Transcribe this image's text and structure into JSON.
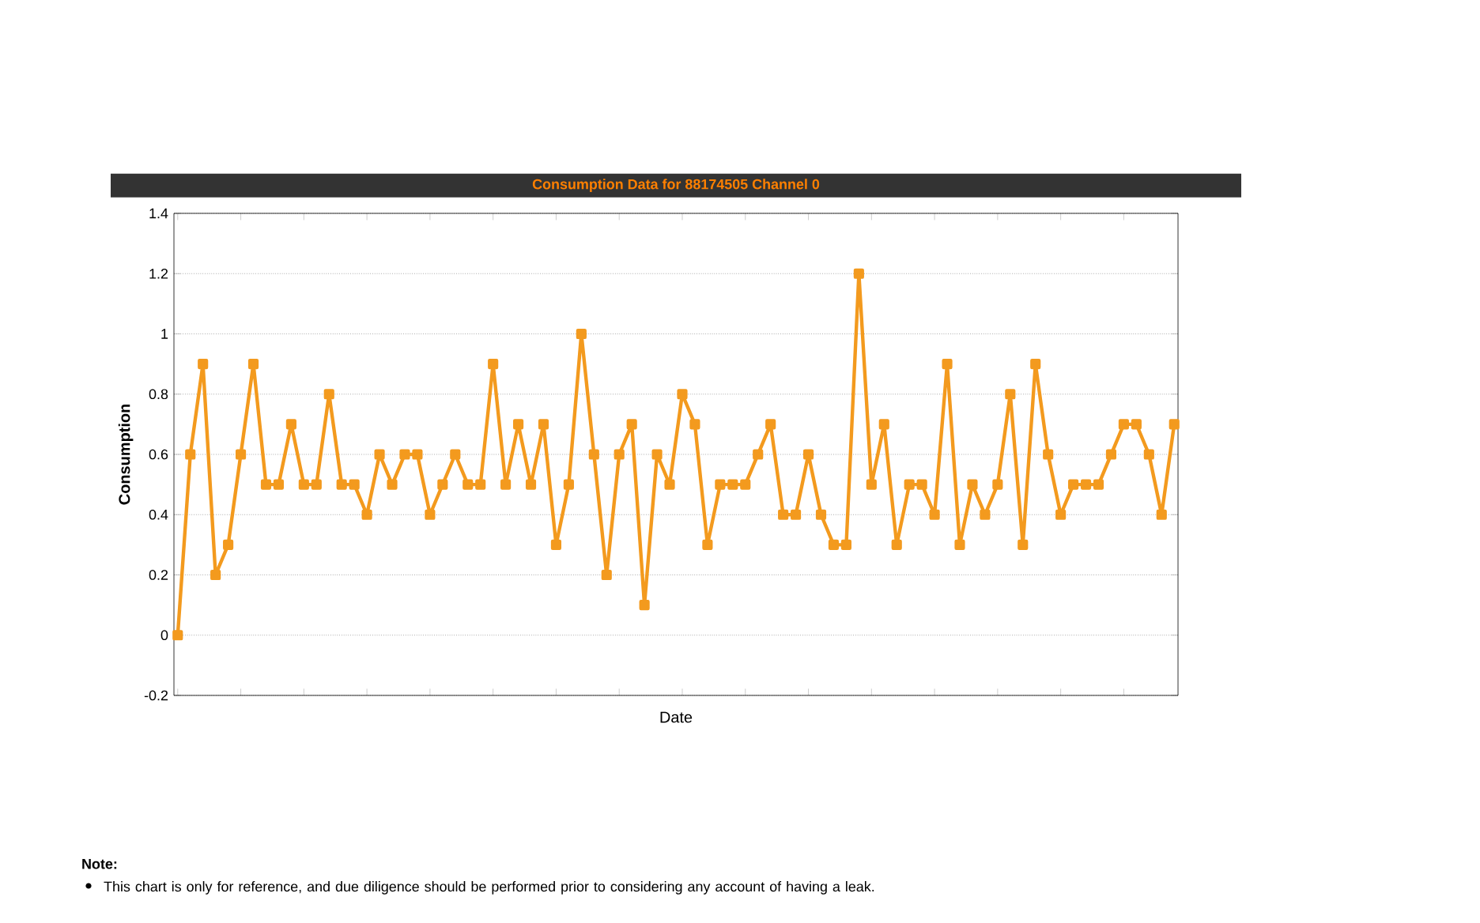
{
  "chart_data": {
    "type": "line",
    "title": "Consumption Data for 88174505 Channel 0",
    "xlabel": "Date",
    "ylabel": "Consumption",
    "categories": [
      null,
      null,
      null,
      null,
      null,
      null,
      null,
      null,
      null,
      null,
      null,
      null,
      null,
      null,
      null,
      null,
      null,
      null,
      null,
      null,
      null,
      null,
      null,
      null,
      null,
      null,
      null,
      null,
      null,
      null,
      null,
      null,
      null,
      null,
      null,
      null,
      null,
      null,
      null,
      null,
      null,
      null,
      null,
      null,
      null,
      null,
      null,
      null,
      null,
      null,
      null,
      null,
      null,
      null,
      null,
      null,
      null,
      null,
      null,
      null,
      null,
      null,
      null,
      null,
      null,
      null,
      null,
      null,
      null,
      null,
      null,
      null,
      null,
      null,
      null,
      null,
      null,
      null,
      null,
      null
    ],
    "series": [
      {
        "color": "#f39a1e",
        "values": [
          0,
          0.6,
          0.9,
          0.2,
          0.3,
          0.6,
          0.9,
          0.5,
          0.5,
          0.7,
          0.5,
          0.5,
          0.8,
          0.5,
          0.5,
          0.4,
          0.6,
          0.5,
          0.6,
          0.6,
          0.4,
          0.5,
          0.6,
          0.5,
          0.5,
          0.9,
          0.5,
          0.7,
          0.5,
          0.7,
          0.3,
          0.5,
          1.0,
          0.6,
          0.2,
          0.6,
          0.7,
          0.1,
          0.6,
          0.5,
          0.8,
          0.7,
          0.3,
          0.5,
          0.5,
          0.5,
          0.6,
          0.7,
          0.4,
          0.4,
          0.6,
          0.4,
          0.3,
          0.3,
          1.2,
          0.5,
          0.7,
          0.3,
          0.5,
          0.5,
          0.4,
          0.9,
          0.3,
          0.5,
          0.4,
          0.5,
          0.8,
          0.3,
          0.9,
          0.6,
          0.4,
          0.5,
          0.5,
          0.5,
          0.6,
          0.7,
          0.7,
          0.6,
          0.4,
          0.7
        ]
      }
    ],
    "ylim": [
      -0.2,
      1.4
    ],
    "yticks": [
      -0.2,
      0,
      0.2,
      0.4,
      0.6,
      0.8,
      1,
      1.2,
      1.4
    ],
    "grid": "y",
    "marker": "square",
    "line_style": "solid",
    "annotations": [
      "Note:",
      "This chart is only for reference, and due diligence should be performed prior to considering any account of having a leak."
    ]
  }
}
